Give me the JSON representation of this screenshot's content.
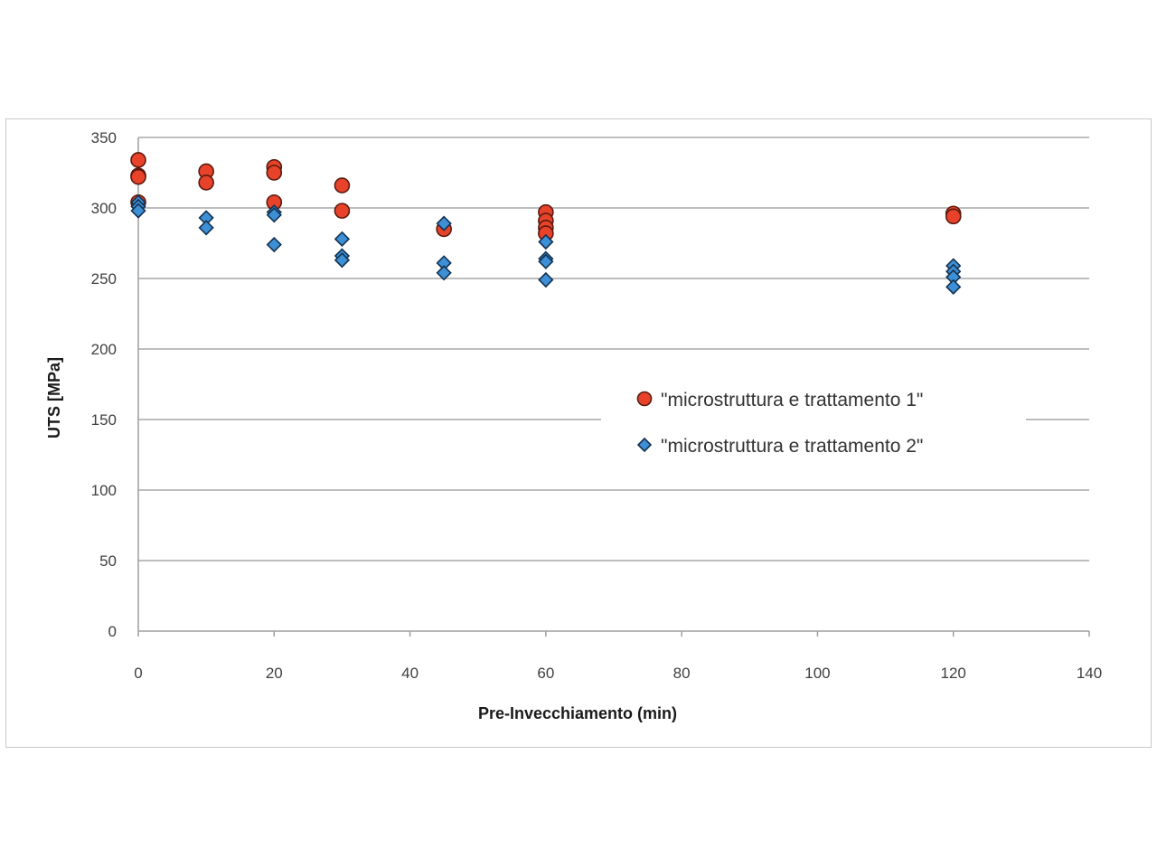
{
  "chart_data": {
    "type": "scatter",
    "title": "",
    "xlabel": "Pre-Invecchiamento (min)",
    "ylabel": "UTS [MPa]",
    "xlim": [
      0,
      140
    ],
    "ylim": [
      0,
      350
    ],
    "xticks": [
      0,
      20,
      40,
      60,
      80,
      100,
      120,
      140
    ],
    "yticks": [
      0,
      50,
      100,
      150,
      200,
      250,
      300,
      350
    ],
    "grid": "horizontal",
    "legend_position": "right-middle",
    "series": [
      {
        "name": "\"microstruttura e trattamento 1\"",
        "marker": "circle",
        "color": "#e8432a",
        "points": [
          [
            0,
            334
          ],
          [
            0,
            323
          ],
          [
            0,
            322
          ],
          [
            0,
            304
          ],
          [
            10,
            326
          ],
          [
            10,
            318
          ],
          [
            20,
            329
          ],
          [
            20,
            325
          ],
          [
            20,
            304
          ],
          [
            30,
            316
          ],
          [
            30,
            298
          ],
          [
            45,
            285
          ],
          [
            60,
            297
          ],
          [
            60,
            291
          ],
          [
            60,
            286
          ],
          [
            60,
            282
          ],
          [
            120,
            296
          ],
          [
            120,
            294
          ]
        ]
      },
      {
        "name": "\"microstruttura e trattamento 2\"",
        "marker": "diamond",
        "color": "#3d8fd6",
        "points": [
          [
            0,
            304
          ],
          [
            0,
            301
          ],
          [
            0,
            298
          ],
          [
            10,
            293
          ],
          [
            10,
            286
          ],
          [
            20,
            297
          ],
          [
            20,
            295
          ],
          [
            20,
            274
          ],
          [
            30,
            278
          ],
          [
            30,
            266
          ],
          [
            30,
            263
          ],
          [
            45,
            289
          ],
          [
            45,
            261
          ],
          [
            45,
            254
          ],
          [
            60,
            276
          ],
          [
            60,
            264
          ],
          [
            60,
            262
          ],
          [
            60,
            249
          ],
          [
            120,
            259
          ],
          [
            120,
            255
          ],
          [
            120,
            251
          ],
          [
            120,
            244
          ]
        ]
      }
    ]
  }
}
